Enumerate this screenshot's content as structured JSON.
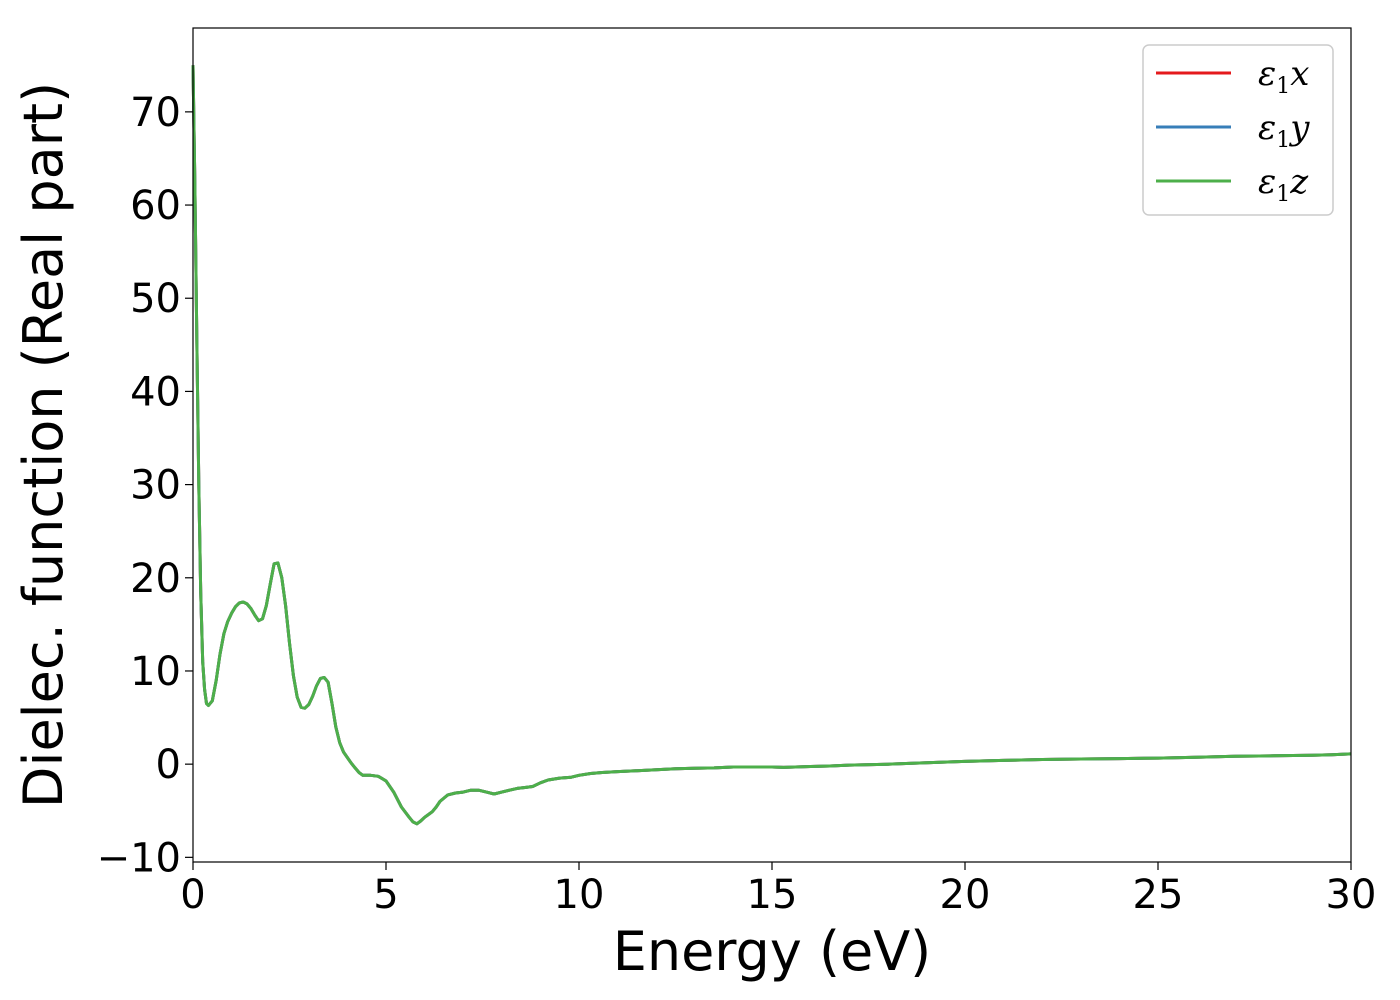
{
  "chart_data": {
    "type": "line",
    "title": "",
    "xlabel": "Energy (eV)",
    "ylabel": "Dielec. function (Real part)",
    "xlim": [
      0,
      30
    ],
    "ylim": [
      -10.5,
      79
    ],
    "xticks": [
      0,
      5,
      10,
      15,
      20,
      25,
      30
    ],
    "xtick_labels": [
      "0",
      "5",
      "10",
      "15",
      "20",
      "25",
      "30"
    ],
    "yticks": [
      -10,
      0,
      10,
      20,
      30,
      40,
      50,
      60,
      70
    ],
    "ytick_labels": [
      "−10",
      "0",
      "10",
      "20",
      "30",
      "40",
      "50",
      "60",
      "70"
    ],
    "grid": false,
    "legend_position": "top-right",
    "legend": [
      {
        "symbol": "ε",
        "sub": "1",
        "axis": "x",
        "color": "#e41a1c"
      },
      {
        "symbol": "ε",
        "sub": "1",
        "axis": "y",
        "color": "#377eb8"
      },
      {
        "symbol": "ε",
        "sub": "1",
        "axis": "z",
        "color": "#4daf4a"
      }
    ],
    "x": [
      0,
      0.05,
      0.1,
      0.15,
      0.2,
      0.25,
      0.3,
      0.35,
      0.4,
      0.5,
      0.6,
      0.7,
      0.8,
      0.9,
      1.0,
      1.1,
      1.2,
      1.3,
      1.4,
      1.5,
      1.6,
      1.7,
      1.8,
      1.9,
      2.0,
      2.1,
      2.2,
      2.3,
      2.4,
      2.5,
      2.6,
      2.7,
      2.8,
      2.9,
      3.0,
      3.1,
      3.2,
      3.3,
      3.4,
      3.5,
      3.6,
      3.7,
      3.8,
      3.9,
      4.0,
      4.1,
      4.2,
      4.3,
      4.4,
      4.6,
      4.8,
      5.0,
      5.2,
      5.4,
      5.6,
      5.7,
      5.8,
      5.9,
      6.0,
      6.1,
      6.2,
      6.3,
      6.4,
      6.6,
      6.8,
      7.0,
      7.2,
      7.4,
      7.6,
      7.8,
      8.0,
      8.2,
      8.4,
      8.6,
      8.8,
      9.0,
      9.2,
      9.5,
      9.8,
      10.0,
      10.3,
      10.6,
      11.0,
      11.5,
      12.0,
      12.5,
      13.0,
      13.5,
      14.0,
      14.5,
      15.0,
      15.3,
      15.6,
      16.0,
      16.5,
      17.0,
      18.0,
      19.0,
      20.0,
      21.0,
      22.0,
      23.0,
      24.0,
      25.0,
      26.0,
      27.0,
      28.0,
      29.0,
      29.5,
      30.0
    ],
    "series": [
      {
        "name": "ε1x",
        "color": "#e41a1c",
        "values": [
          75.0,
          62.0,
          45.0,
          30.0,
          18.5,
          11.0,
          8.0,
          6.5,
          6.3,
          6.8,
          9.0,
          11.8,
          14.0,
          15.3,
          16.2,
          16.9,
          17.3,
          17.4,
          17.2,
          16.7,
          16.0,
          15.4,
          15.6,
          17.0,
          19.3,
          21.5,
          21.6,
          20.0,
          17.0,
          13.0,
          9.5,
          7.2,
          6.1,
          6.0,
          6.4,
          7.3,
          8.4,
          9.2,
          9.3,
          8.8,
          6.5,
          4.0,
          2.3,
          1.3,
          0.7,
          0.1,
          -0.4,
          -0.9,
          -1.2,
          -1.2,
          -1.3,
          -1.8,
          -3.0,
          -4.6,
          -5.7,
          -6.2,
          -6.4,
          -6.1,
          -5.7,
          -5.4,
          -5.1,
          -4.6,
          -4.0,
          -3.3,
          -3.1,
          -3.0,
          -2.8,
          -2.8,
          -3.0,
          -3.2,
          -3.0,
          -2.8,
          -2.6,
          -2.5,
          -2.4,
          -2.0,
          -1.7,
          -1.5,
          -1.4,
          -1.2,
          -1.0,
          -0.9,
          -0.8,
          -0.7,
          -0.6,
          -0.5,
          -0.45,
          -0.4,
          -0.3,
          -0.3,
          -0.3,
          -0.35,
          -0.3,
          -0.25,
          -0.2,
          -0.1,
          0.0,
          0.15,
          0.3,
          0.4,
          0.5,
          0.55,
          0.6,
          0.65,
          0.75,
          0.85,
          0.9,
          0.95,
          1.0,
          1.1
        ]
      },
      {
        "name": "ε1y",
        "color": "#377eb8",
        "values": [
          75.0,
          62.0,
          45.0,
          30.0,
          18.5,
          11.0,
          8.0,
          6.5,
          6.3,
          6.8,
          9.0,
          11.8,
          14.0,
          15.3,
          16.2,
          16.9,
          17.3,
          17.4,
          17.2,
          16.7,
          16.0,
          15.4,
          15.6,
          17.0,
          19.3,
          21.5,
          21.6,
          20.0,
          17.0,
          13.0,
          9.5,
          7.2,
          6.1,
          6.0,
          6.4,
          7.3,
          8.4,
          9.2,
          9.3,
          8.8,
          6.5,
          4.0,
          2.3,
          1.3,
          0.7,
          0.1,
          -0.4,
          -0.9,
          -1.2,
          -1.2,
          -1.3,
          -1.8,
          -3.0,
          -4.6,
          -5.7,
          -6.2,
          -6.4,
          -6.1,
          -5.7,
          -5.4,
          -5.1,
          -4.6,
          -4.0,
          -3.3,
          -3.1,
          -3.0,
          -2.8,
          -2.8,
          -3.0,
          -3.2,
          -3.0,
          -2.8,
          -2.6,
          -2.5,
          -2.4,
          -2.0,
          -1.7,
          -1.5,
          -1.4,
          -1.2,
          -1.0,
          -0.9,
          -0.8,
          -0.7,
          -0.6,
          -0.5,
          -0.45,
          -0.4,
          -0.3,
          -0.3,
          -0.3,
          -0.35,
          -0.3,
          -0.25,
          -0.2,
          -0.1,
          0.0,
          0.15,
          0.3,
          0.4,
          0.5,
          0.55,
          0.6,
          0.65,
          0.75,
          0.85,
          0.9,
          0.95,
          1.0,
          1.1
        ]
      },
      {
        "name": "ε1z",
        "color": "#4daf4a",
        "values": [
          75.0,
          62.0,
          45.0,
          30.0,
          18.5,
          11.0,
          8.0,
          6.5,
          6.3,
          6.8,
          9.0,
          11.8,
          14.0,
          15.3,
          16.2,
          16.9,
          17.3,
          17.4,
          17.2,
          16.7,
          16.0,
          15.4,
          15.6,
          17.0,
          19.3,
          21.5,
          21.6,
          20.0,
          17.0,
          13.0,
          9.5,
          7.2,
          6.1,
          6.0,
          6.4,
          7.3,
          8.4,
          9.2,
          9.3,
          8.8,
          6.5,
          4.0,
          2.3,
          1.3,
          0.7,
          0.1,
          -0.4,
          -0.9,
          -1.2,
          -1.2,
          -1.3,
          -1.8,
          -3.0,
          -4.6,
          -5.7,
          -6.2,
          -6.4,
          -6.1,
          -5.7,
          -5.4,
          -5.1,
          -4.6,
          -4.0,
          -3.3,
          -3.1,
          -3.0,
          -2.8,
          -2.8,
          -3.0,
          -3.2,
          -3.0,
          -2.8,
          -2.6,
          -2.5,
          -2.4,
          -2.0,
          -1.7,
          -1.5,
          -1.4,
          -1.2,
          -1.0,
          -0.9,
          -0.8,
          -0.7,
          -0.6,
          -0.5,
          -0.45,
          -0.4,
          -0.3,
          -0.3,
          -0.3,
          -0.35,
          -0.3,
          -0.25,
          -0.2,
          -0.1,
          0.0,
          0.15,
          0.3,
          0.4,
          0.5,
          0.55,
          0.6,
          0.65,
          0.75,
          0.85,
          0.9,
          0.95,
          1.0,
          1.1
        ]
      }
    ]
  }
}
